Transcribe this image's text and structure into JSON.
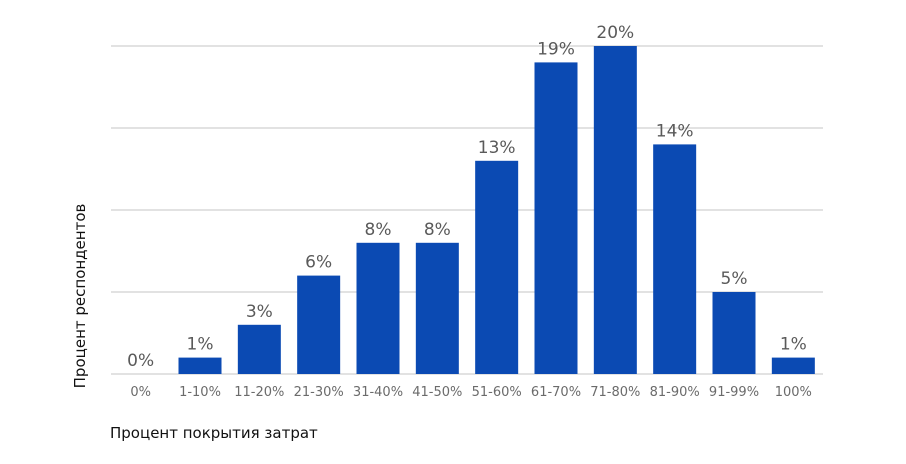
{
  "chart_data": {
    "type": "bar",
    "categories": [
      "0%",
      "1-10%",
      "11-20%",
      "21-30%",
      "31-40%",
      "41-50%",
      "51-60%",
      "61-70%",
      "71-80%",
      "81-90%",
      "91-99%",
      "100%"
    ],
    "values": [
      0,
      1,
      3,
      6,
      8,
      8,
      13,
      19,
      20,
      14,
      5,
      1
    ],
    "data_labels": [
      "0%",
      "1%",
      "3%",
      "6%",
      "8%",
      "8%",
      "13%",
      "19%",
      "20%",
      "14%",
      "5%",
      "1%"
    ],
    "xlabel": "Процент покрытия затрат",
    "ylabel": "Процент респондентов",
    "ylim": [
      0,
      20
    ],
    "gridlines": [
      5,
      10,
      15,
      20
    ],
    "grid": true,
    "bar_color": "#0b4ab3"
  }
}
